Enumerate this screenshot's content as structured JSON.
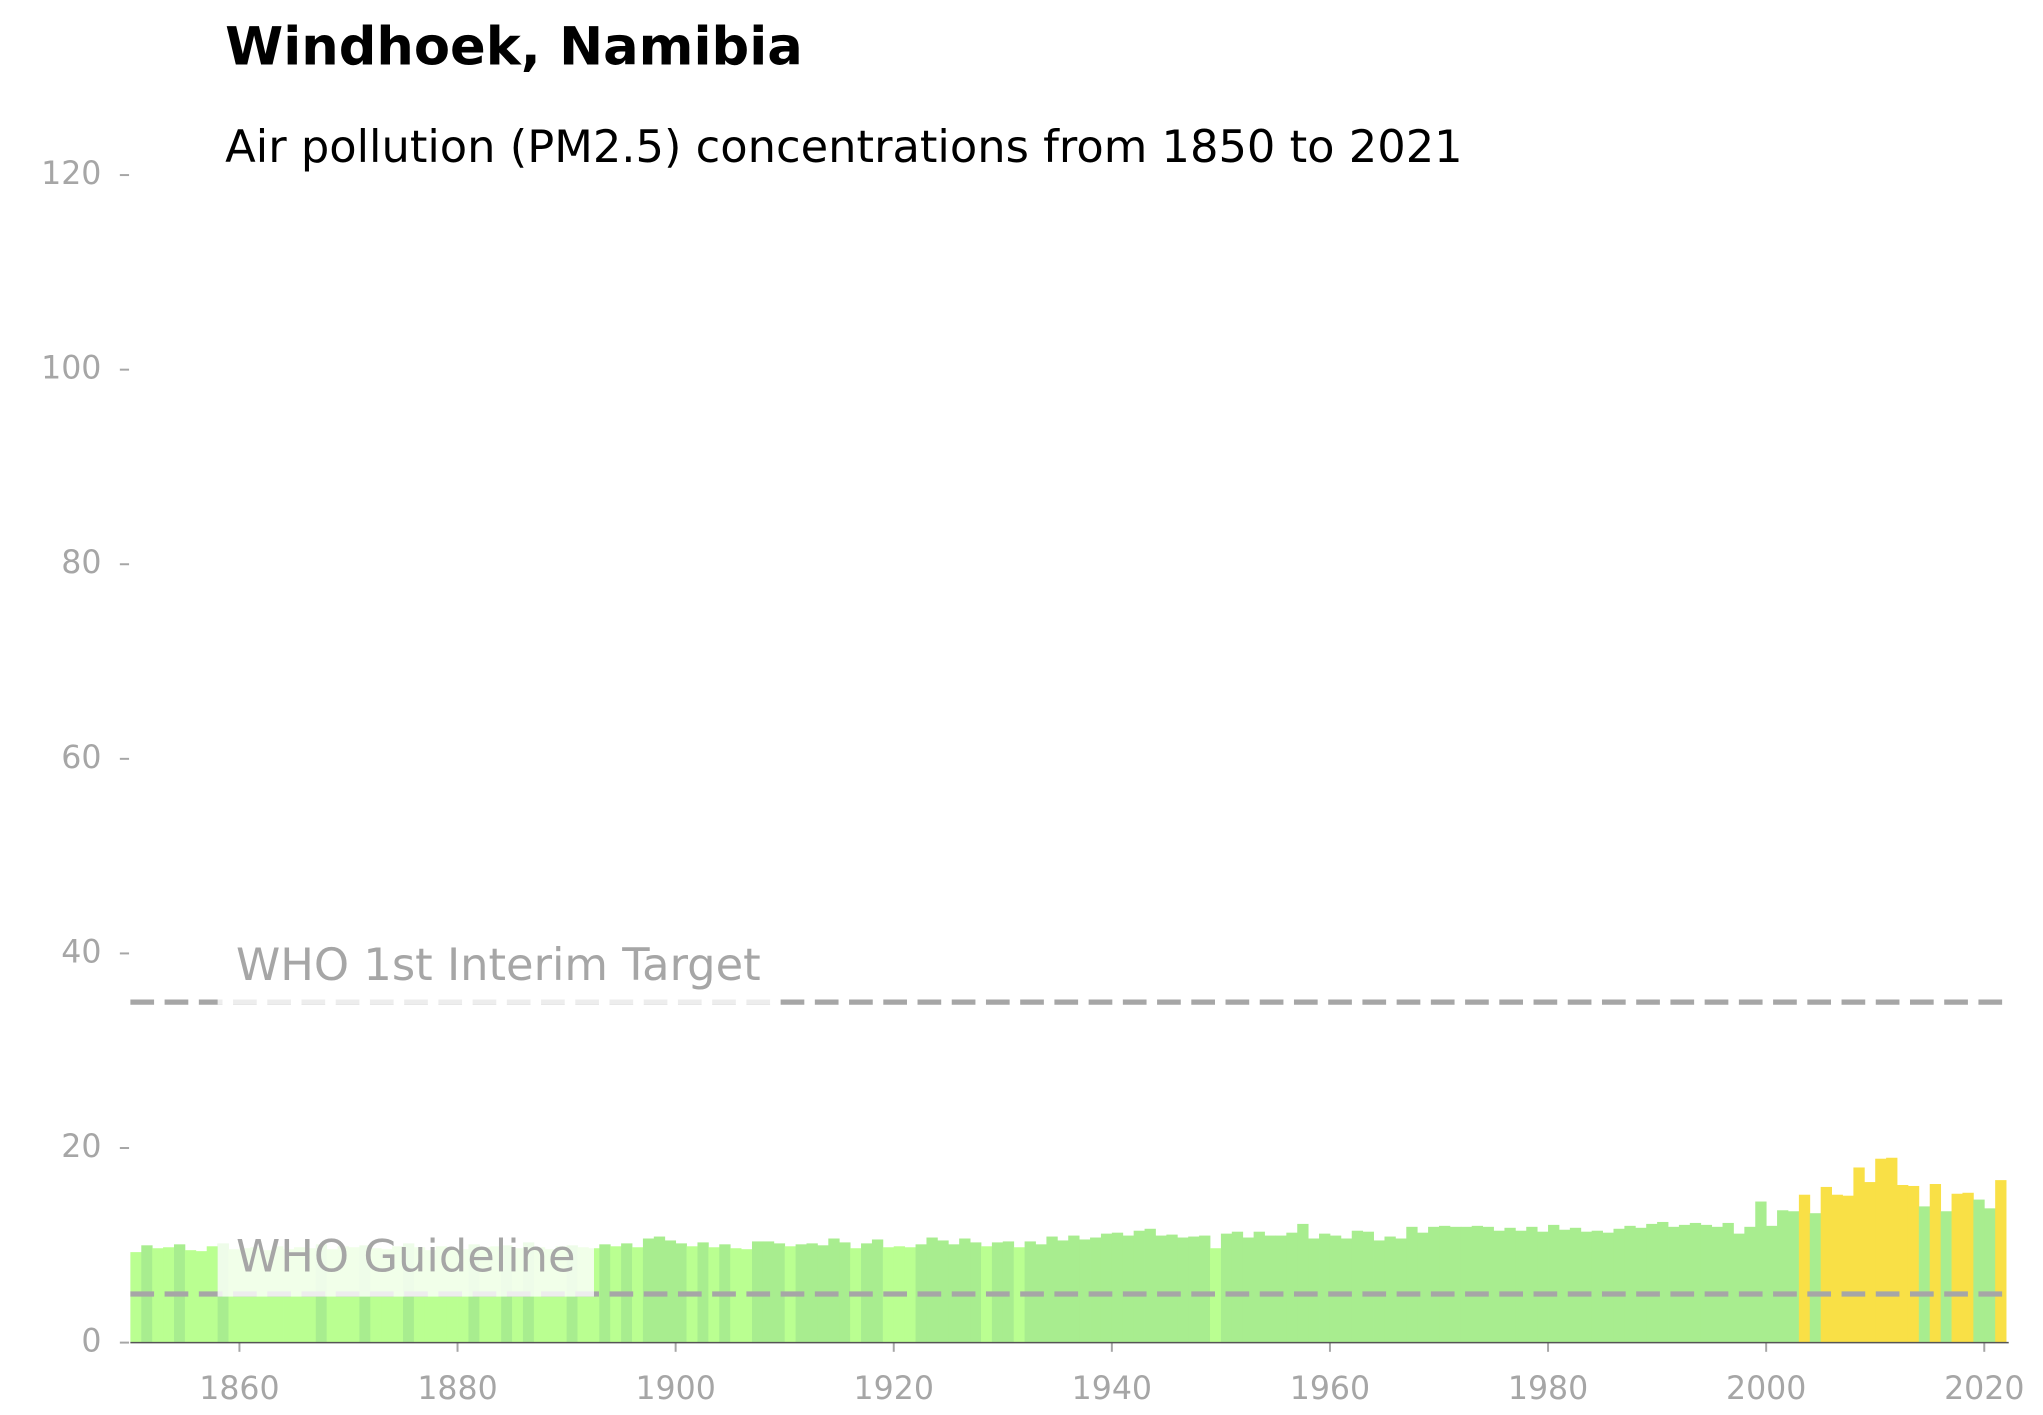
{
  "chart_data": {
    "type": "bar",
    "title": "Windhoek, Namibia",
    "subtitle": "Air pollution (PM2.5) concentrations from 1850 to 2021",
    "x": [
      1850,
      1851,
      1852,
      1853,
      1854,
      1855,
      1856,
      1857,
      1858,
      1859,
      1860,
      1861,
      1862,
      1863,
      1864,
      1865,
      1866,
      1867,
      1868,
      1869,
      1870,
      1871,
      1872,
      1873,
      1874,
      1875,
      1876,
      1877,
      1878,
      1879,
      1880,
      1881,
      1882,
      1883,
      1884,
      1885,
      1886,
      1887,
      1888,
      1889,
      1890,
      1891,
      1892,
      1893,
      1894,
      1895,
      1896,
      1897,
      1898,
      1899,
      1900,
      1901,
      1902,
      1903,
      1904,
      1905,
      1906,
      1907,
      1908,
      1909,
      1910,
      1911,
      1912,
      1913,
      1914,
      1915,
      1916,
      1917,
      1918,
      1919,
      1920,
      1921,
      1922,
      1923,
      1924,
      1925,
      1926,
      1927,
      1928,
      1929,
      1930,
      1931,
      1932,
      1933,
      1934,
      1935,
      1936,
      1937,
      1938,
      1939,
      1940,
      1941,
      1942,
      1943,
      1944,
      1945,
      1946,
      1947,
      1948,
      1949,
      1950,
      1951,
      1952,
      1953,
      1954,
      1955,
      1956,
      1957,
      1958,
      1959,
      1960,
      1961,
      1962,
      1963,
      1964,
      1965,
      1966,
      1967,
      1968,
      1969,
      1970,
      1971,
      1972,
      1973,
      1974,
      1975,
      1976,
      1977,
      1978,
      1979,
      1980,
      1981,
      1982,
      1983,
      1984,
      1985,
      1986,
      1987,
      1988,
      1989,
      1990,
      1991,
      1992,
      1993,
      1994,
      1995,
      1996,
      1997,
      1998,
      1999,
      2000,
      2001,
      2002,
      2003,
      2004,
      2005,
      2006,
      2007,
      2008,
      2009,
      2010,
      2011,
      2012,
      2013,
      2014,
      2015,
      2016,
      2017,
      2018,
      2019,
      2020,
      2021
    ],
    "values": [
      9.3,
      10.0,
      9.7,
      9.8,
      10.1,
      9.5,
      9.4,
      9.9,
      10.2,
      9.6,
      9.7,
      9.8,
      9.5,
      9.9,
      9.6,
      9.8,
      9.7,
      10.1,
      9.6,
      9.9,
      9.8,
      10.0,
      9.7,
      9.6,
      9.9,
      10.2,
      9.8,
      9.5,
      9.9,
      9.7,
      9.6,
      10.1,
      9.8,
      9.9,
      10.0,
      9.7,
      10.3,
      9.8,
      9.6,
      9.9,
      10.0,
      9.8,
      9.7,
      10.1,
      9.9,
      10.2,
      9.8,
      10.7,
      10.9,
      10.5,
      10.2,
      9.9,
      10.3,
      9.8,
      10.1,
      9.7,
      9.6,
      10.4,
      10.4,
      10.2,
      9.9,
      10.1,
      10.2,
      10.0,
      10.7,
      10.3,
      9.7,
      10.2,
      10.6,
      9.8,
      9.9,
      9.8,
      10.1,
      10.8,
      10.5,
      10.1,
      10.7,
      10.3,
      9.9,
      10.3,
      10.4,
      9.8,
      10.4,
      10.1,
      10.9,
      10.5,
      11.0,
      10.6,
      10.8,
      11.2,
      11.3,
      11.0,
      11.5,
      11.7,
      11.0,
      11.1,
      10.8,
      10.9,
      11.0,
      9.7,
      11.2,
      11.4,
      10.8,
      11.4,
      11.0,
      11.0,
      11.3,
      12.2,
      10.7,
      11.2,
      11.0,
      10.7,
      11.5,
      11.4,
      10.5,
      10.9,
      10.7,
      11.9,
      11.3,
      11.9,
      12.0,
      11.9,
      11.9,
      12.0,
      11.9,
      11.5,
      11.8,
      11.5,
      11.9,
      11.4,
      12.1,
      11.6,
      11.8,
      11.4,
      11.5,
      11.3,
      11.7,
      12.0,
      11.8,
      12.2,
      12.4,
      11.9,
      12.1,
      12.3,
      12.1,
      11.9,
      12.3,
      11.2,
      11.9,
      14.5,
      12.0,
      13.6,
      13.5,
      15.2,
      13.3,
      16.0,
      15.2,
      15.1,
      18.0,
      16.5,
      18.9,
      19.0,
      16.2,
      16.1,
      14.0,
      16.3,
      13.5,
      15.3,
      15.4,
      14.7,
      13.8,
      16.7
    ],
    "colors": [
      "#baff91",
      "#a8ed8f",
      "#baff91",
      "#baff91",
      "#a8ed8f",
      "#baff91",
      "#baff91",
      "#baff91",
      "#a8ed8f",
      "#baff91",
      "#baff91",
      "#baff91",
      "#baff91",
      "#baff91",
      "#baff91",
      "#baff91",
      "#baff91",
      "#a8ed8f",
      "#baff91",
      "#baff91",
      "#baff91",
      "#a8ed8f",
      "#baff91",
      "#baff91",
      "#baff91",
      "#a8ed8f",
      "#baff91",
      "#baff91",
      "#baff91",
      "#baff91",
      "#baff91",
      "#a8ed8f",
      "#baff91",
      "#baff91",
      "#a8ed8f",
      "#baff91",
      "#a8ed8f",
      "#baff91",
      "#baff91",
      "#baff91",
      "#a8ed8f",
      "#baff91",
      "#baff91",
      "#a8ed8f",
      "#baff91",
      "#a8ed8f",
      "#baff91",
      "#a8ed8f",
      "#a8ed8f",
      "#a8ed8f",
      "#a8ed8f",
      "#baff91",
      "#a8ed8f",
      "#baff91",
      "#a8ed8f",
      "#baff91",
      "#baff91",
      "#a8ed8f",
      "#a8ed8f",
      "#a8ed8f",
      "#baff91",
      "#a8ed8f",
      "#a8ed8f",
      "#a8ed8f",
      "#a8ed8f",
      "#a8ed8f",
      "#baff91",
      "#a8ed8f",
      "#a8ed8f",
      "#baff91",
      "#baff91",
      "#baff91",
      "#a8ed8f",
      "#a8ed8f",
      "#a8ed8f",
      "#a8ed8f",
      "#a8ed8f",
      "#a8ed8f",
      "#baff91",
      "#a8ed8f",
      "#a8ed8f",
      "#baff91",
      "#a8ed8f",
      "#a8ed8f",
      "#a8ed8f",
      "#a8ed8f",
      "#a8ed8f",
      "#a8ed8f",
      "#a8ed8f",
      "#a8ed8f",
      "#a8ed8f",
      "#a8ed8f",
      "#a8ed8f",
      "#a8ed8f",
      "#a8ed8f",
      "#a8ed8f",
      "#a8ed8f",
      "#a8ed8f",
      "#a8ed8f",
      "#baff91",
      "#a8ed8f",
      "#a8ed8f",
      "#a8ed8f",
      "#a8ed8f",
      "#a8ed8f",
      "#a8ed8f",
      "#a8ed8f",
      "#a8ed8f",
      "#a8ed8f",
      "#a8ed8f",
      "#a8ed8f",
      "#a8ed8f",
      "#a8ed8f",
      "#a8ed8f",
      "#a8ed8f",
      "#a8ed8f",
      "#a8ed8f",
      "#a8ed8f",
      "#a8ed8f",
      "#a8ed8f",
      "#a8ed8f",
      "#a8ed8f",
      "#a8ed8f",
      "#a8ed8f",
      "#a8ed8f",
      "#a8ed8f",
      "#a8ed8f",
      "#a8ed8f",
      "#a8ed8f",
      "#a8ed8f",
      "#a8ed8f",
      "#a8ed8f",
      "#a8ed8f",
      "#a8ed8f",
      "#a8ed8f",
      "#a8ed8f",
      "#a8ed8f",
      "#a8ed8f",
      "#a8ed8f",
      "#a8ed8f",
      "#a8ed8f",
      "#a8ed8f",
      "#a8ed8f",
      "#a8ed8f",
      "#a8ed8f",
      "#a8ed8f",
      "#a8ed8f",
      "#a8ed8f",
      "#a8ed8f",
      "#a8ed8f",
      "#a8ed8f",
      "#a8ed8f",
      "#a8ed8f",
      "#f9e046",
      "#a8ed8f",
      "#f9e046",
      "#f9e046",
      "#f9e046",
      "#f9e046",
      "#f9e046",
      "#f9e046",
      "#f9e046",
      "#f9e046",
      "#f9e046",
      "#a8ed8f",
      "#f9e046",
      "#a8ed8f",
      "#f9e046",
      "#f9e046",
      "#a8ed8f",
      "#a8ed8f",
      "#f9e046"
    ],
    "xlim": [
      1850,
      2022
    ],
    "xticks": [
      1860,
      1880,
      1900,
      1920,
      1940,
      1960,
      1980,
      2000,
      2020
    ],
    "ylim": [
      0,
      120
    ],
    "yticks": [
      0,
      20,
      40,
      60,
      80,
      100,
      120
    ],
    "reference_lines": [
      {
        "value": 35,
        "label": "WHO 1st Interim Target"
      },
      {
        "value": 5,
        "label": "WHO Guideline"
      }
    ],
    "reference_color": "#a6a6a6"
  }
}
